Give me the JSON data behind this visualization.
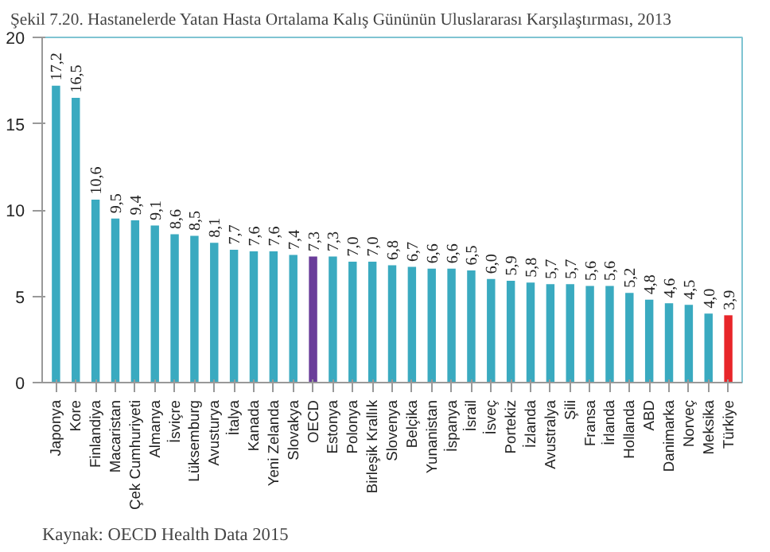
{
  "chart_data": {
    "type": "bar",
    "title": "Şekil 7.20. Hastanelerde Yatan Hasta Ortalama Kalış Gününün Uluslararası Karşılaştırması, 2013",
    "categories": [
      "Japonya",
      "Kore",
      "Finlandiya",
      "Macaristan",
      "Çek Cumhuriyeti",
      "Almanya",
      "İsviçre",
      "Lüksemburg",
      "Avusturya",
      "İtalya",
      "Kanada",
      "Yeni Zelanda",
      "Slovakya",
      "OECD",
      "Estonya",
      "Polonya",
      "Birleşik Krallık",
      "Slovenya",
      "Belçika",
      "Yunanistan",
      "İspanya",
      "İsrail",
      "İsveç",
      "Portekiz",
      "İzlanda",
      "Avustralya",
      "Şili",
      "Fransa",
      "İrlanda",
      "Hollanda",
      "ABD",
      "Danimarka",
      "Norveç",
      "Meksika",
      "Türkiye"
    ],
    "values": [
      17.2,
      16.5,
      10.6,
      9.5,
      9.4,
      9.1,
      8.6,
      8.5,
      8.1,
      7.7,
      7.6,
      7.6,
      7.4,
      7.3,
      7.3,
      7.0,
      7.0,
      6.8,
      6.7,
      6.6,
      6.6,
      6.5,
      6.0,
      5.9,
      5.8,
      5.7,
      5.7,
      5.6,
      5.6,
      5.2,
      4.8,
      4.6,
      4.5,
      4.0,
      3.9
    ],
    "value_labels": [
      "17,2",
      "16,5",
      "10,6",
      "9,5",
      "9,4",
      "9,1",
      "8,6",
      "8,5",
      "8,1",
      "7,7",
      "7,6",
      "7,6",
      "7,4",
      "7,3",
      "7,3",
      "7,0",
      "7,0",
      "6,8",
      "6,7",
      "6,6",
      "6,6",
      "6,5",
      "6,0",
      "5,9",
      "5,8",
      "5,7",
      "5,7",
      "5,6",
      "5,6",
      "5,2",
      "4,8",
      "4,6",
      "4,5",
      "4,0",
      "3,9"
    ],
    "colors": [
      "#3aaac0",
      "#3aaac0",
      "#3aaac0",
      "#3aaac0",
      "#3aaac0",
      "#3aaac0",
      "#3aaac0",
      "#3aaac0",
      "#3aaac0",
      "#3aaac0",
      "#3aaac0",
      "#3aaac0",
      "#3aaac0",
      "#6a3d9a",
      "#3aaac0",
      "#3aaac0",
      "#3aaac0",
      "#3aaac0",
      "#3aaac0",
      "#3aaac0",
      "#3aaac0",
      "#3aaac0",
      "#3aaac0",
      "#3aaac0",
      "#3aaac0",
      "#3aaac0",
      "#3aaac0",
      "#3aaac0",
      "#3aaac0",
      "#3aaac0",
      "#3aaac0",
      "#3aaac0",
      "#3aaac0",
      "#3aaac0",
      "#e8262a"
    ],
    "ylim": [
      0,
      20
    ],
    "yticks": [
      0,
      5,
      10,
      15,
      20
    ],
    "grid": false,
    "annotations": [
      "Kaynak: OECD Health Data 2015"
    ]
  }
}
